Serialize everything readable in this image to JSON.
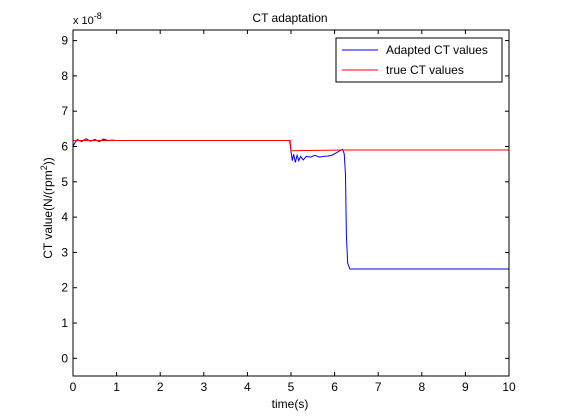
{
  "chart_data": {
    "type": "line",
    "title": "CT adaptation",
    "xlabel": "time(s)",
    "ylabel_main": "CT value(N/(rpm",
    "ylabel_sup": "2",
    "ylabel_end": "))",
    "exponent_base": "x 10",
    "exponent_power": "-8",
    "xlim": [
      0,
      10
    ],
    "ylim": [
      -0.5,
      9.3
    ],
    "xticks": [
      0,
      1,
      2,
      3,
      4,
      5,
      6,
      7,
      8,
      9,
      10
    ],
    "xtick_labels": [
      "0",
      "1",
      "2",
      "3",
      "4",
      "5",
      "6",
      "7",
      "8",
      "9",
      "10"
    ],
    "yticks": [
      0,
      1,
      2,
      3,
      4,
      5,
      6,
      7,
      8,
      9
    ],
    "ytick_labels": [
      "0",
      "1",
      "2",
      "3",
      "4",
      "5",
      "6",
      "7",
      "8",
      "9"
    ],
    "grid": false,
    "legend_position": "top-right",
    "series": [
      {
        "name": "Adapted CT values",
        "color": "#0000ff",
        "x": [
          0,
          0.05,
          0.1,
          0.2,
          0.3,
          0.4,
          0.5,
          0.6,
          0.7,
          0.8,
          0.9,
          1.0,
          1.5,
          2,
          3,
          4,
          4.97,
          5.0,
          5.03,
          5.06,
          5.1,
          5.14,
          5.18,
          5.22,
          5.28,
          5.35,
          5.45,
          5.55,
          5.65,
          5.75,
          5.85,
          5.95,
          6.05,
          6.12,
          6.18,
          6.22,
          6.25,
          6.27,
          6.3,
          6.35,
          6.5,
          7,
          8,
          9,
          10
        ],
        "y": [
          6.0,
          6.12,
          6.2,
          6.14,
          6.22,
          6.15,
          6.2,
          6.14,
          6.21,
          6.17,
          6.18,
          6.17,
          6.17,
          6.17,
          6.17,
          6.17,
          6.17,
          5.85,
          5.6,
          5.78,
          5.55,
          5.75,
          5.6,
          5.72,
          5.62,
          5.72,
          5.7,
          5.75,
          5.7,
          5.72,
          5.73,
          5.76,
          5.83,
          5.88,
          5.92,
          5.8,
          5.2,
          3.5,
          2.7,
          2.53,
          2.53,
          2.53,
          2.53,
          2.53,
          2.53
        ]
      },
      {
        "name": "true CT values",
        "color": "#ff0000",
        "x": [
          0,
          4.98,
          5.0,
          6.2,
          10
        ],
        "y": [
          6.17,
          6.17,
          5.88,
          5.9,
          5.9
        ]
      }
    ]
  }
}
